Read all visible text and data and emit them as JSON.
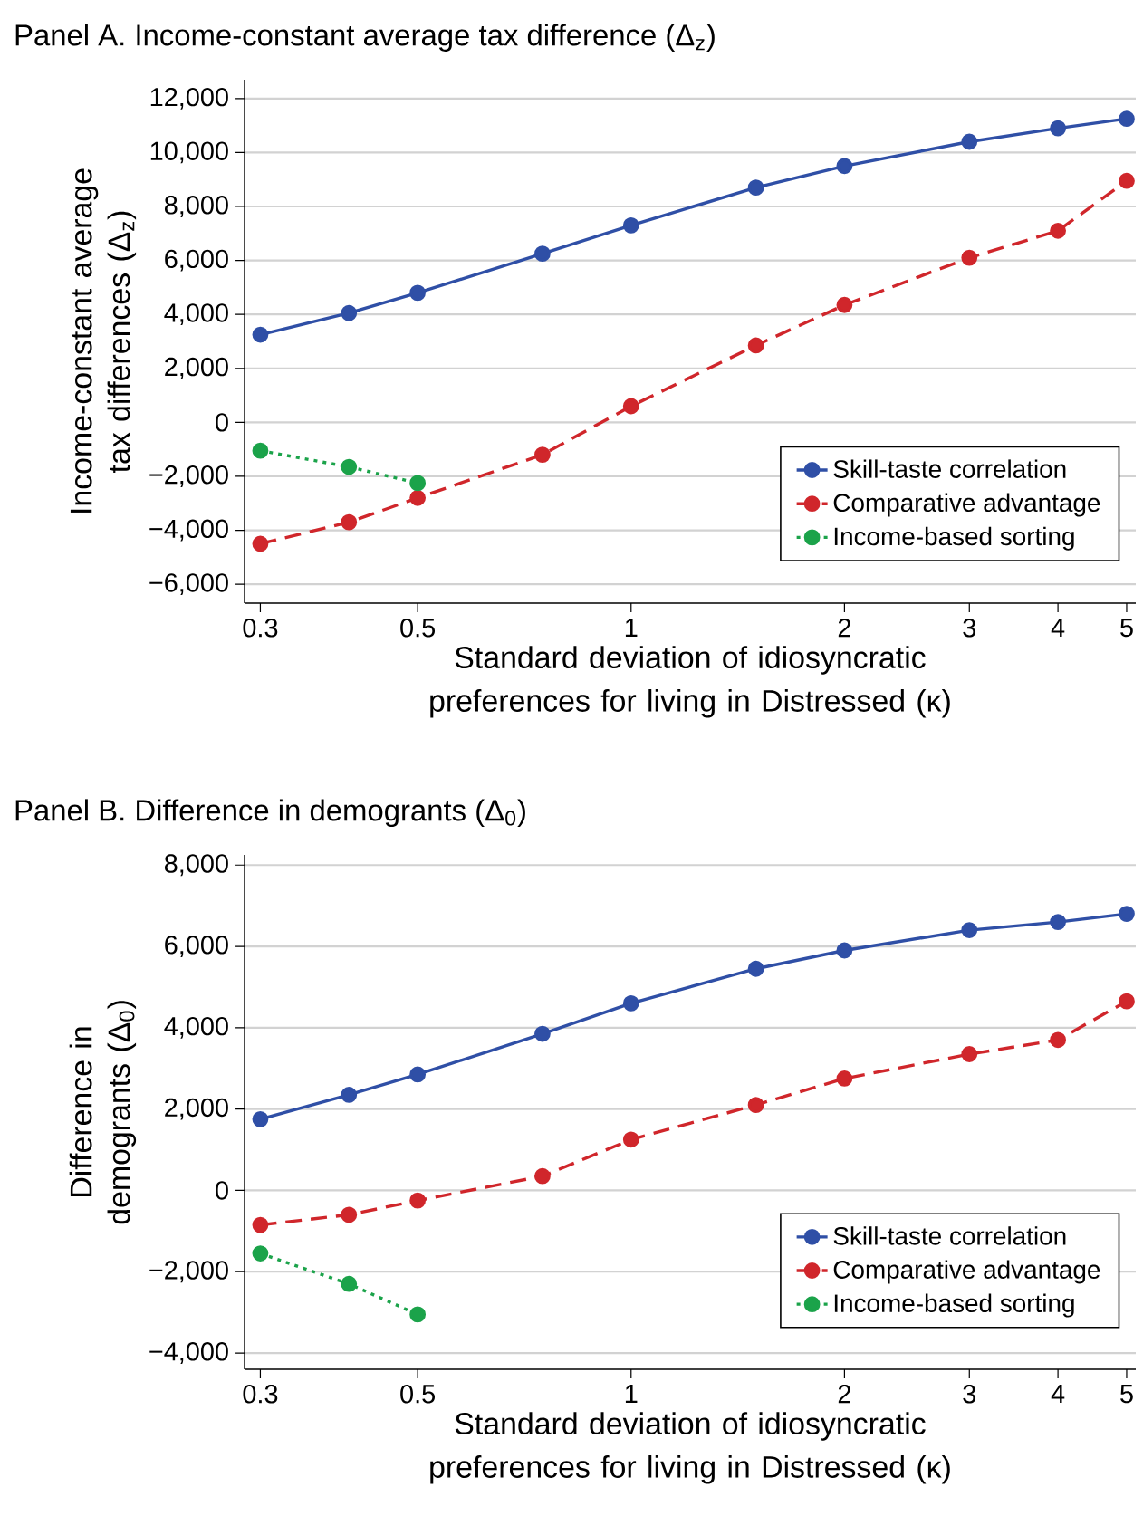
{
  "chart_data": [
    {
      "type": "line",
      "title": "Panel A. Income-constant average tax difference (Δ$_{z}$)",
      "xlabel": "Standard deviation of idiosyncratic preferences for living in Distressed (κ)",
      "ylabel": "Income-constant average tax differences (Δ$_{z}$)",
      "x": [
        0.3,
        0.4,
        0.5,
        0.75,
        1,
        1.5,
        2,
        3,
        4,
        5
      ],
      "series": [
        {
          "name": "Skill-taste correlation",
          "color": "#2f4fa6",
          "line_style": "solid",
          "values": [
            3250,
            4050,
            4800,
            6250,
            7300,
            8700,
            9500,
            10400,
            10900,
            11250
          ]
        },
        {
          "name": "Comparative advantage",
          "color": "#d0262b",
          "line_style": "dashed",
          "values": [
            -4500,
            -3700,
            -2800,
            -1200,
            600,
            2850,
            4350,
            6100,
            7100,
            8950
          ]
        },
        {
          "name": "Income-based sorting",
          "color": "#1ba34a",
          "line_style": "dotted",
          "x": [
            0.3,
            0.4,
            0.5
          ],
          "values": [
            -1050,
            -1650,
            -2250
          ]
        }
      ],
      "log": "x",
      "xlim": [
        0.285,
        5.15
      ],
      "ylim": [
        -6700,
        12700
      ],
      "xticks": [
        0.3,
        0.5,
        1,
        2,
        3,
        4,
        5
      ],
      "yticks": [
        {
          "value": 12000,
          "label": "12,000"
        },
        {
          "value": 10000,
          "label": "10,000"
        },
        {
          "value": 8000,
          "label": "8,000"
        },
        {
          "value": 6000,
          "label": "6,000"
        },
        {
          "value": 4000,
          "label": "4,000"
        },
        {
          "value": 2000,
          "label": "2,000"
        },
        0,
        {
          "value": -2000,
          "label": "−2,000"
        },
        {
          "value": -4000,
          "label": "−4,000"
        },
        {
          "value": -6000,
          "label": "−6,000"
        }
      ],
      "grid": "y",
      "legend": "bottom right",
      "marker": "circle"
    },
    {
      "type": "line",
      "title": "Panel B. Difference in demogrants (Δ$_{0}$)",
      "xlabel": "Standard deviation of idiosyncratic preferences for living in Distressed (κ)",
      "ylabel": "Difference in demogrants (Δ$_{0}$)",
      "x": [
        0.3,
        0.4,
        0.5,
        0.75,
        1,
        1.5,
        2,
        3,
        4,
        5
      ],
      "series": [
        {
          "name": "Skill-taste correlation",
          "color": "#2f4fa6",
          "line_style": "solid",
          "values": [
            1750,
            2350,
            2850,
            3850,
            4600,
            5450,
            5900,
            6400,
            6600,
            6800
          ]
        },
        {
          "name": "Comparative advantage",
          "color": "#d0262b",
          "line_style": "dashed",
          "values": [
            -850,
            -600,
            -250,
            350,
            1250,
            2100,
            2750,
            3350,
            3700,
            4650
          ]
        },
        {
          "name": "Income-based sorting",
          "color": "#1ba34a",
          "line_style": "dotted",
          "x": [
            0.3,
            0.4,
            0.5
          ],
          "values": [
            -1550,
            -2300,
            -3050
          ]
        }
      ],
      "log": "x",
      "xlim": [
        0.285,
        5.15
      ],
      "ylim": [
        -4400,
        8250
      ],
      "xticks": [
        0.3,
        0.5,
        1,
        2,
        3,
        4,
        5
      ],
      "yticks": [
        {
          "value": 8000,
          "label": "8,000"
        },
        {
          "value": 6000,
          "label": "6,000"
        },
        {
          "value": 4000,
          "label": "4,000"
        },
        {
          "value": 2000,
          "label": "2,000"
        },
        0,
        {
          "value": -2000,
          "label": "−2,000"
        },
        {
          "value": -4000,
          "label": "−4,000"
        }
      ],
      "grid": "y",
      "legend": "bottom right",
      "marker": "circle"
    }
  ]
}
